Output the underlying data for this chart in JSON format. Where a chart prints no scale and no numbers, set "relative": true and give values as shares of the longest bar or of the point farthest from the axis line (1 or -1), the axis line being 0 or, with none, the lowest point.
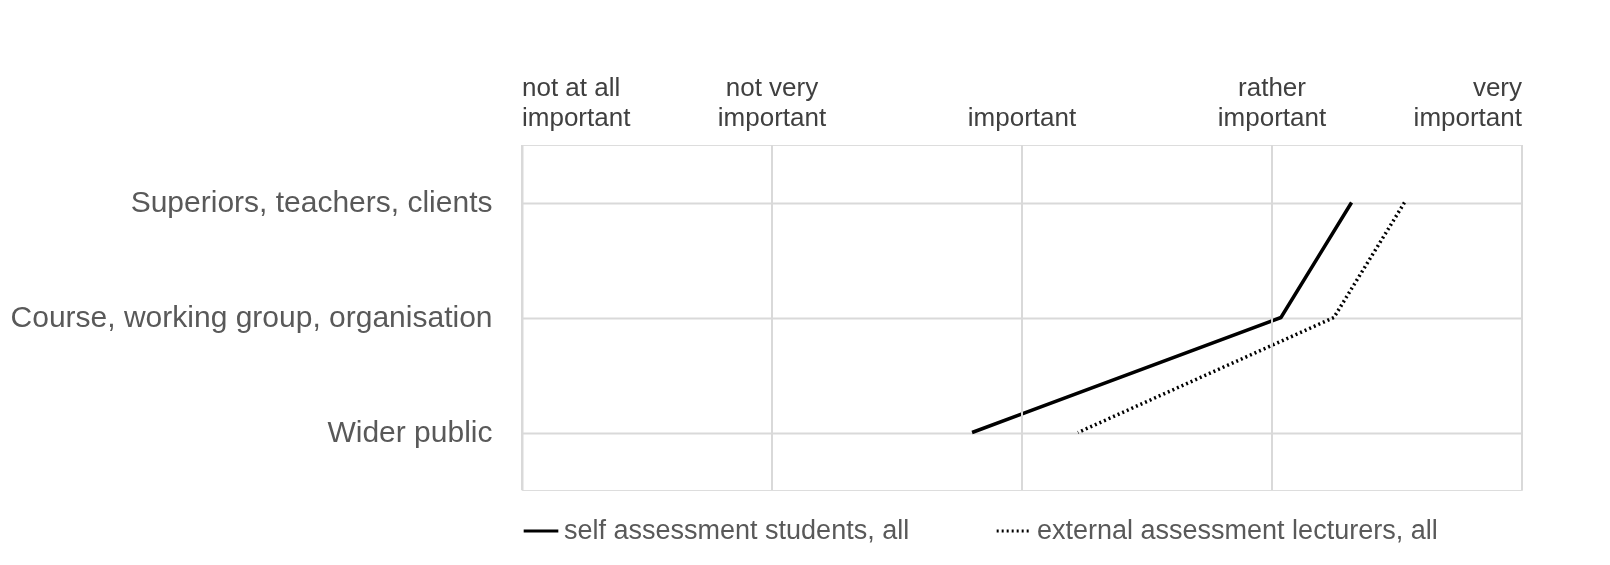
{
  "chart_data": {
    "type": "line",
    "orientation": "horizontal",
    "relative": true,
    "categories": [
      "Superiors, teachers, clients",
      "Course, working group, organisation",
      "Wider public"
    ],
    "series": [
      {
        "name": "self assessment students, all",
        "color": "#000000",
        "line_style": "solid",
        "values": [
          0.94,
          0.86,
          0.51
        ]
      },
      {
        "name": "external assessment lecturers, all",
        "color": "#000000",
        "line_style": "dotted",
        "values": [
          1,
          0.92,
          0.63
        ]
      }
    ],
    "annotations": [
      "not at all\nimportant",
      "not very\nimportant",
      "important",
      "rather\nimportant",
      "very\nimportant"
    ],
    "grid": true,
    "legend": "bottom",
    "marker": "none"
  }
}
